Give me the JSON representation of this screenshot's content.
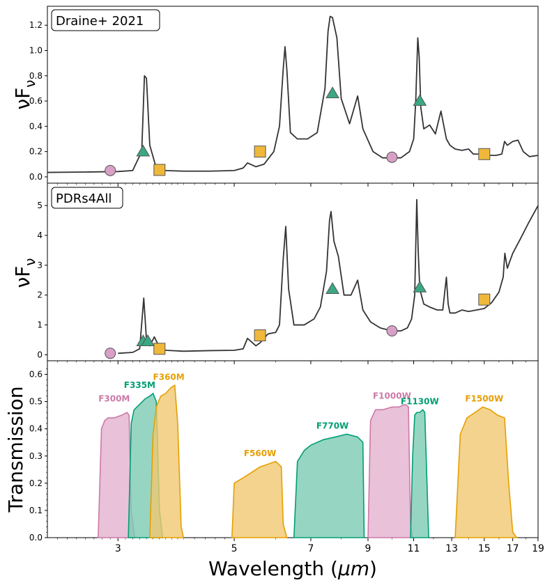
{
  "chart_data": [
    {
      "type": "line",
      "panel_label": "Draine+ 2021",
      "ylabel_main": "νF",
      "ylabel_sub": "ν",
      "ylim": [
        -0.05,
        1.35
      ],
      "yticks": [
        "0.0",
        "0.2",
        "0.4",
        "0.6",
        "0.8",
        "1.0",
        "1.2"
      ],
      "spectrum": {
        "x": [
          2.2,
          2.6,
          3.0,
          3.2,
          3.33,
          3.37,
          3.4,
          3.45,
          3.55,
          3.7,
          4.0,
          4.5,
          5.0,
          5.2,
          5.3,
          5.5,
          5.7,
          5.95,
          6.1,
          6.2,
          6.25,
          6.3,
          6.4,
          6.6,
          6.9,
          7.2,
          7.45,
          7.55,
          7.62,
          7.7,
          7.85,
          8.0,
          8.3,
          8.6,
          8.8,
          9.2,
          9.6,
          10.0,
          10.4,
          10.8,
          11.0,
          11.1,
          11.2,
          11.27,
          11.35,
          11.5,
          11.8,
          12.1,
          12.4,
          12.7,
          12.9,
          13.2,
          13.6,
          14.0,
          14.3,
          14.7,
          15.2,
          15.8,
          16.2,
          16.4,
          16.6,
          17.0,
          17.4,
          17.8,
          18.3,
          19.0
        ],
        "y": [
          0.035,
          0.038,
          0.042,
          0.05,
          0.2,
          0.8,
          0.78,
          0.25,
          0.07,
          0.05,
          0.045,
          0.045,
          0.05,
          0.07,
          0.11,
          0.08,
          0.1,
          0.2,
          0.4,
          0.85,
          1.03,
          0.85,
          0.35,
          0.3,
          0.3,
          0.35,
          0.7,
          1.15,
          1.27,
          1.26,
          1.1,
          0.62,
          0.42,
          0.64,
          0.38,
          0.2,
          0.15,
          0.15,
          0.15,
          0.2,
          0.3,
          0.6,
          1.1,
          0.95,
          0.55,
          0.38,
          0.41,
          0.34,
          0.52,
          0.3,
          0.25,
          0.22,
          0.21,
          0.22,
          0.18,
          0.18,
          0.17,
          0.17,
          0.18,
          0.28,
          0.25,
          0.28,
          0.29,
          0.2,
          0.16,
          0.17
        ]
      },
      "circles": [
        [
          2.9,
          0.05
        ],
        [
          10.0,
          0.155
        ]
      ],
      "triangles": [
        [
          3.35,
          0.2
        ],
        [
          7.7,
          0.66
        ],
        [
          11.3,
          0.6
        ]
      ],
      "squares": [
        [
          3.6,
          0.055
        ],
        [
          5.6,
          0.2
        ],
        [
          15.0,
          0.18
        ]
      ]
    },
    {
      "type": "line",
      "panel_label": "PDRs4All",
      "ylabel_main": "νF",
      "ylabel_sub": "ν",
      "ylim": [
        -0.2,
        5.75
      ],
      "yticks": [
        "0",
        "1",
        "2",
        "3",
        "4",
        "5"
      ],
      "spectrum": {
        "x": [
          3.0,
          3.2,
          3.3,
          3.36,
          3.4,
          3.45,
          3.52,
          3.6,
          3.7,
          4.0,
          4.5,
          5.0,
          5.2,
          5.3,
          5.5,
          5.6,
          5.8,
          6.0,
          6.1,
          6.2,
          6.27,
          6.35,
          6.5,
          6.8,
          7.1,
          7.3,
          7.5,
          7.6,
          7.65,
          7.75,
          7.9,
          8.1,
          8.35,
          8.6,
          8.8,
          9.1,
          9.5,
          10.0,
          10.4,
          10.7,
          10.9,
          11.05,
          11.15,
          11.22,
          11.3,
          11.5,
          11.8,
          12.2,
          12.5,
          12.7,
          12.8,
          12.9,
          13.2,
          13.6,
          14.0,
          14.5,
          15.0,
          15.5,
          16.0,
          16.3,
          16.42,
          16.6,
          17.0,
          17.6,
          18.2,
          19.0
        ],
        "y": [
          0.05,
          0.08,
          0.2,
          1.9,
          0.5,
          0.3,
          0.6,
          0.25,
          0.15,
          0.12,
          0.14,
          0.15,
          0.2,
          0.55,
          0.3,
          0.4,
          0.7,
          0.75,
          1.0,
          3.2,
          4.3,
          2.2,
          1.0,
          1.0,
          1.2,
          1.6,
          2.8,
          4.5,
          4.8,
          3.8,
          3.3,
          2.0,
          2.0,
          2.5,
          1.5,
          1.1,
          0.9,
          0.8,
          0.8,
          0.9,
          1.2,
          2.0,
          5.2,
          3.5,
          2.2,
          1.7,
          1.6,
          1.5,
          1.5,
          2.6,
          1.7,
          1.4,
          1.4,
          1.5,
          1.45,
          1.5,
          1.55,
          1.75,
          2.1,
          2.6,
          3.4,
          2.9,
          3.4,
          3.9,
          4.4,
          5.0
        ]
      },
      "circles": [
        [
          2.9,
          0.05
        ],
        [
          10.0,
          0.8
        ]
      ],
      "triangles": [
        [
          3.35,
          0.45
        ],
        [
          3.42,
          0.45
        ],
        [
          7.7,
          2.2
        ],
        [
          11.3,
          2.25
        ]
      ],
      "squares": [
        [
          3.6,
          0.2
        ],
        [
          5.6,
          0.65
        ],
        [
          15.0,
          1.85
        ]
      ]
    },
    {
      "type": "area",
      "ylabel": "Transmission",
      "xlabel": "Wavelength (μm)",
      "xlabel_unit": "μm",
      "xscale": "log",
      "xlim": [
        2.2,
        19.0
      ],
      "ylim": [
        0.0,
        0.65
      ],
      "yticks": [
        "0.0",
        "0.1",
        "0.2",
        "0.3",
        "0.4",
        "0.5",
        "0.6"
      ],
      "xticks": [
        3,
        5,
        7,
        9,
        11,
        13,
        15,
        17,
        19
      ],
      "filters": [
        {
          "name": "F300M",
          "color": "pink",
          "label_at": [
            2.95,
            0.5
          ],
          "x": [
            2.75,
            2.79,
            2.83,
            2.87,
            2.95,
            3.05,
            3.12,
            3.15,
            3.18,
            3.23
          ],
          "y": [
            0.0,
            0.4,
            0.43,
            0.44,
            0.44,
            0.45,
            0.46,
            0.45,
            0.1,
            0.0
          ]
        },
        {
          "name": "F335M",
          "color": "green",
          "label_at": [
            3.3,
            0.55
          ],
          "x": [
            3.14,
            3.18,
            3.22,
            3.3,
            3.38,
            3.45,
            3.5,
            3.55,
            3.6,
            3.65
          ],
          "y": [
            0.0,
            0.42,
            0.47,
            0.49,
            0.51,
            0.52,
            0.53,
            0.5,
            0.1,
            0.0
          ]
        },
        {
          "name": "F360M",
          "color": "orange",
          "label_at": [
            3.75,
            0.58
          ],
          "x": [
            3.45,
            3.5,
            3.55,
            3.62,
            3.7,
            3.78,
            3.85,
            3.9,
            3.96,
            4.0
          ],
          "y": [
            0.0,
            0.38,
            0.48,
            0.52,
            0.53,
            0.55,
            0.56,
            0.42,
            0.04,
            0.0
          ]
        },
        {
          "name": "F560W",
          "color": "orange",
          "label_at": [
            5.6,
            0.3
          ],
          "x": [
            4.95,
            5.0,
            5.2,
            5.4,
            5.6,
            5.8,
            6.0,
            6.15,
            6.2,
            6.3
          ],
          "y": [
            0.0,
            0.2,
            0.22,
            0.24,
            0.26,
            0.27,
            0.28,
            0.26,
            0.05,
            0.0
          ]
        },
        {
          "name": "F770W",
          "color": "green",
          "label_at": [
            7.7,
            0.4
          ],
          "x": [
            6.5,
            6.6,
            6.8,
            7.0,
            7.4,
            7.8,
            8.2,
            8.6,
            8.8,
            8.85
          ],
          "y": [
            0.0,
            0.28,
            0.32,
            0.34,
            0.36,
            0.37,
            0.38,
            0.37,
            0.35,
            0.0
          ]
        },
        {
          "name": "F1000W",
          "color": "pink",
          "label_at": [
            10.0,
            0.51
          ],
          "x": [
            9.0,
            9.1,
            9.3,
            9.6,
            10.0,
            10.3,
            10.6,
            10.75,
            10.85,
            10.95
          ],
          "y": [
            0.0,
            0.43,
            0.47,
            0.47,
            0.48,
            0.48,
            0.49,
            0.48,
            0.05,
            0.0
          ]
        },
        {
          "name": "F1130W",
          "color": "green",
          "label_at": [
            11.3,
            0.49
          ],
          "x": [
            10.85,
            10.95,
            11.05,
            11.15,
            11.3,
            11.45,
            11.55,
            11.62,
            11.75
          ],
          "y": [
            0.0,
            0.3,
            0.45,
            0.46,
            0.46,
            0.47,
            0.46,
            0.3,
            0.0
          ]
        },
        {
          "name": "F1500W",
          "color": "orange",
          "label_at": [
            15.0,
            0.5
          ],
          "x": [
            13.2,
            13.5,
            13.9,
            14.4,
            14.9,
            15.4,
            15.9,
            16.4,
            16.7,
            17.0,
            17.3
          ],
          "y": [
            0.0,
            0.38,
            0.44,
            0.46,
            0.48,
            0.47,
            0.45,
            0.44,
            0.2,
            0.02,
            0.0
          ]
        }
      ]
    }
  ],
  "colors": {
    "pink": "#cc79a7",
    "pink_fill": "#e3b2d0",
    "green": "#009e73",
    "green_fill": "#7dcbb4",
    "orange": "#e69f00",
    "orange_fill": "#f0c870",
    "marker_orange": "#f0b83a",
    "marker_green": "#3aa884",
    "marker_pink": "#d8a0c6",
    "line": "#333333"
  }
}
